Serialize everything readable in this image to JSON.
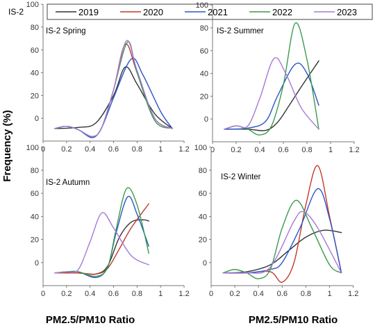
{
  "station_label": "IS-2",
  "ylabel": "Frequency (%)",
  "xlabel": "PM2.5/PM10 Ratio",
  "series_colors": {
    "2019": "#333333",
    "2020": "#c0392b",
    "2021": "#2a55c7",
    "2022": "#3a9a4a",
    "2023": "#a678d8"
  },
  "legend": [
    "2019",
    "2020",
    "2021",
    "2022",
    "2023"
  ],
  "chart_data": [
    {
      "type": "line",
      "title": "IS-2 Spring",
      "xlim": [
        0,
        1.2
      ],
      "ylim": [
        -20,
        100
      ],
      "x_ticks": [
        0,
        0.2,
        0.4,
        0.6,
        0.8,
        1.0,
        1.2
      ],
      "y_ticks": [
        100,
        80,
        60,
        40,
        20,
        0
      ],
      "series": [
        {
          "name": "2019",
          "points": [
            [
              0.1,
              -9
            ],
            [
              0.3,
              -8
            ],
            [
              0.45,
              -4
            ],
            [
              0.6,
              20
            ],
            [
              0.7,
              45
            ],
            [
              0.8,
              30
            ],
            [
              0.95,
              4
            ],
            [
              1.1,
              -9
            ]
          ]
        },
        {
          "name": "2020",
          "points": [
            [
              0.1,
              -9
            ],
            [
              0.2,
              -7
            ],
            [
              0.3,
              -10
            ],
            [
              0.42,
              -16
            ],
            [
              0.5,
              -8
            ],
            [
              0.6,
              25
            ],
            [
              0.7,
              65
            ],
            [
              0.8,
              40
            ],
            [
              0.95,
              0
            ],
            [
              1.1,
              -9
            ]
          ]
        },
        {
          "name": "2021",
          "points": [
            [
              0.1,
              -9
            ],
            [
              0.2,
              -7
            ],
            [
              0.3,
              -10
            ],
            [
              0.42,
              -17
            ],
            [
              0.5,
              -8
            ],
            [
              0.6,
              18
            ],
            [
              0.75,
              52
            ],
            [
              0.85,
              38
            ],
            [
              1.0,
              6
            ],
            [
              1.1,
              -9
            ]
          ]
        },
        {
          "name": "2022",
          "points": [
            [
              0.1,
              -9
            ],
            [
              0.2,
              -7
            ],
            [
              0.3,
              -10
            ],
            [
              0.42,
              -16
            ],
            [
              0.5,
              -8
            ],
            [
              0.6,
              25
            ],
            [
              0.72,
              67
            ],
            [
              0.8,
              40
            ],
            [
              0.95,
              -2
            ],
            [
              1.1,
              -9
            ]
          ]
        },
        {
          "name": "2023",
          "points": [
            [
              0.1,
              -9
            ],
            [
              0.2,
              -7
            ],
            [
              0.3,
              -10
            ],
            [
              0.42,
              -16
            ],
            [
              0.5,
              -8
            ],
            [
              0.6,
              25
            ],
            [
              0.71,
              68
            ],
            [
              0.8,
              42
            ],
            [
              0.95,
              0
            ],
            [
              1.1,
              -9
            ]
          ]
        }
      ]
    },
    {
      "type": "line",
      "title": "IS-2 Summer",
      "xlim": [
        0,
        1.2
      ],
      "ylim": [
        -20,
        100
      ],
      "x_ticks": [
        0,
        0.2,
        0.4,
        0.6,
        0.8,
        1.0,
        1.2
      ],
      "y_ticks": [
        100,
        80,
        60,
        40,
        20,
        0
      ],
      "series": [
        {
          "name": "2019",
          "points": [
            [
              0.1,
              -9
            ],
            [
              0.3,
              -9
            ],
            [
              0.45,
              -10
            ],
            [
              0.55,
              -3
            ],
            [
              0.65,
              12
            ],
            [
              0.75,
              28
            ],
            [
              0.9,
              51
            ]
          ]
        },
        {
          "name": "2021",
          "points": [
            [
              0.1,
              -9
            ],
            [
              0.3,
              -8
            ],
            [
              0.45,
              -2
            ],
            [
              0.55,
              20
            ],
            [
              0.7,
              48
            ],
            [
              0.8,
              40
            ],
            [
              0.9,
              12
            ]
          ]
        },
        {
          "name": "2022",
          "points": [
            [
              0.1,
              -9
            ],
            [
              0.2,
              -6
            ],
            [
              0.3,
              -9
            ],
            [
              0.4,
              -14
            ],
            [
              0.5,
              -6
            ],
            [
              0.6,
              30
            ],
            [
              0.7,
              84
            ],
            [
              0.8,
              52
            ],
            [
              0.9,
              -9
            ]
          ]
        },
        {
          "name": "2023",
          "points": [
            [
              0.1,
              -9
            ],
            [
              0.2,
              -6
            ],
            [
              0.3,
              -6
            ],
            [
              0.4,
              18
            ],
            [
              0.52,
              53
            ],
            [
              0.62,
              40
            ],
            [
              0.75,
              10
            ],
            [
              0.9,
              -9
            ]
          ]
        }
      ]
    },
    {
      "type": "line",
      "title": "IS-2 Autumn",
      "xlim": [
        0,
        1.2
      ],
      "ylim": [
        -20,
        100
      ],
      "x_ticks": [
        0,
        0.2,
        0.4,
        0.6,
        0.8,
        1.0,
        1.2
      ],
      "y_ticks": [
        100,
        80,
        60,
        40,
        20,
        0
      ],
      "series": [
        {
          "name": "2019",
          "points": [
            [
              0.1,
              -9
            ],
            [
              0.3,
              -9
            ],
            [
              0.45,
              -10
            ],
            [
              0.55,
              -3
            ],
            [
              0.65,
              22
            ],
            [
              0.75,
              35
            ],
            [
              0.85,
              37
            ],
            [
              0.9,
              36
            ]
          ]
        },
        {
          "name": "2020",
          "points": [
            [
              0.1,
              -9
            ],
            [
              0.3,
              -9
            ],
            [
              0.45,
              -10
            ],
            [
              0.55,
              -5
            ],
            [
              0.65,
              12
            ],
            [
              0.75,
              30
            ],
            [
              0.9,
              51
            ]
          ]
        },
        {
          "name": "2021",
          "points": [
            [
              0.1,
              -9
            ],
            [
              0.2,
              -8
            ],
            [
              0.3,
              -8
            ],
            [
              0.45,
              -13
            ],
            [
              0.55,
              -4
            ],
            [
              0.62,
              25
            ],
            [
              0.72,
              57
            ],
            [
              0.8,
              42
            ],
            [
              0.9,
              14
            ]
          ]
        },
        {
          "name": "2022",
          "points": [
            [
              0.1,
              -9
            ],
            [
              0.2,
              -8
            ],
            [
              0.3,
              -8
            ],
            [
              0.45,
              -12
            ],
            [
              0.55,
              -4
            ],
            [
              0.62,
              28
            ],
            [
              0.71,
              64
            ],
            [
              0.8,
              50
            ],
            [
              0.9,
              8
            ]
          ]
        },
        {
          "name": "2023",
          "points": [
            [
              0.1,
              -9
            ],
            [
              0.2,
              -8
            ],
            [
              0.3,
              -6
            ],
            [
              0.4,
              18
            ],
            [
              0.5,
              43
            ],
            [
              0.6,
              30
            ],
            [
              0.75,
              6
            ],
            [
              0.9,
              -2
            ]
          ]
        }
      ]
    },
    {
      "type": "line",
      "title": "IS-2 Winter",
      "xlim": [
        0,
        1.2
      ],
      "ylim": [
        -20,
        100
      ],
      "x_ticks": [
        0,
        0.2,
        0.4,
        0.6,
        0.8,
        1.0,
        1.2
      ],
      "y_ticks": [
        100,
        80,
        60,
        40,
        20,
        0
      ],
      "series": [
        {
          "name": "2019",
          "points": [
            [
              0.1,
              -9
            ],
            [
              0.3,
              -8
            ],
            [
              0.5,
              -2
            ],
            [
              0.65,
              10
            ],
            [
              0.8,
              22
            ],
            [
              0.95,
              28
            ],
            [
              1.1,
              26
            ]
          ]
        },
        {
          "name": "2020",
          "points": [
            [
              0.1,
              -9
            ],
            [
              0.3,
              -9
            ],
            [
              0.5,
              -8
            ],
            [
              0.6,
              -17
            ],
            [
              0.7,
              0
            ],
            [
              0.8,
              50
            ],
            [
              0.9,
              84
            ],
            [
              1.0,
              40
            ],
            [
              1.1,
              -9
            ]
          ]
        },
        {
          "name": "2021",
          "points": [
            [
              0.1,
              -9
            ],
            [
              0.3,
              -9
            ],
            [
              0.5,
              -6
            ],
            [
              0.6,
              0
            ],
            [
              0.75,
              30
            ],
            [
              0.9,
              64
            ],
            [
              1.0,
              38
            ],
            [
              1.1,
              -9
            ]
          ]
        },
        {
          "name": "2022",
          "points": [
            [
              0.1,
              -9
            ],
            [
              0.2,
              -6
            ],
            [
              0.3,
              -9
            ],
            [
              0.4,
              -14
            ],
            [
              0.5,
              -6
            ],
            [
              0.6,
              30
            ],
            [
              0.72,
              54
            ],
            [
              0.85,
              30
            ],
            [
              1.0,
              -2
            ],
            [
              1.1,
              -9
            ]
          ]
        },
        {
          "name": "2023",
          "points": [
            [
              0.1,
              -9
            ],
            [
              0.3,
              -9
            ],
            [
              0.45,
              -8
            ],
            [
              0.55,
              4
            ],
            [
              0.7,
              36
            ],
            [
              0.78,
              44
            ],
            [
              0.9,
              30
            ],
            [
              1.1,
              -9
            ]
          ]
        }
      ]
    }
  ]
}
